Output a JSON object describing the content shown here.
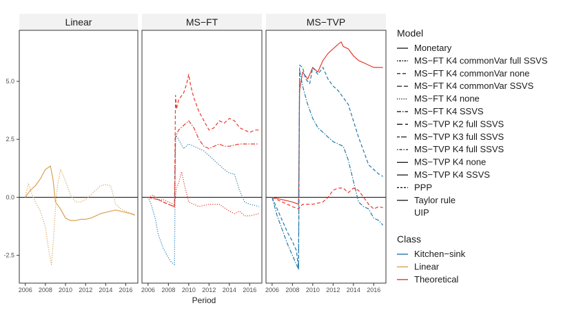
{
  "chart_data": {
    "type": "line",
    "xlabel": "Period",
    "ylabel": "",
    "xlim": [
      2005.4,
      2017.2
    ],
    "ylim": [
      -3.7,
      7.2
    ],
    "x_ticks": [
      "2006",
      "2008",
      "2010",
      "2012",
      "2014",
      "2016"
    ],
    "y_ticks": [
      "-2.5",
      "0.0",
      "2.5",
      "5.0"
    ],
    "grid": false,
    "hline": 0,
    "panels": [
      {
        "title": "Linear",
        "series": [
          {
            "class": "Linear",
            "dash": "solid",
            "x": [
              2006.0,
              2006.5,
              2007.0,
              2007.5,
              2008.0,
              2008.5,
              2008.75,
              2009.0,
              2009.5,
              2010.0,
              2010.5,
              2011.0,
              2011.5,
              2012.0,
              2012.5,
              2013.0,
              2013.5,
              2014.0,
              2014.5,
              2015.0,
              2015.5,
              2016.0,
              2016.5,
              2016.9
            ],
            "y": [
              0.0,
              0.3,
              0.5,
              0.8,
              1.2,
              1.35,
              0.8,
              -0.2,
              -0.5,
              -0.9,
              -1.0,
              -1.0,
              -0.95,
              -0.95,
              -0.9,
              -0.8,
              -0.7,
              -0.65,
              -0.6,
              -0.55,
              -0.6,
              -0.65,
              -0.7,
              -0.75
            ]
          },
          {
            "class": "Linear",
            "dash": "dotted",
            "x": [
              2006.0,
              2006.3,
              2006.6,
              2007.0,
              2007.5,
              2008.0,
              2008.3,
              2008.6,
              2008.8,
              2009.0,
              2009.2,
              2009.5,
              2010.0,
              2010.5,
              2011.0,
              2011.5,
              2012.0,
              2012.5,
              2013.0,
              2013.5,
              2014.0,
              2014.5,
              2015.0,
              2015.5,
              2016.0,
              2016.5,
              2016.9
            ],
            "y": [
              0.0,
              0.6,
              0.2,
              -0.2,
              -0.6,
              -1.3,
              -2.2,
              -2.9,
              -1.8,
              -0.5,
              0.5,
              1.2,
              0.7,
              0.1,
              -0.2,
              -0.2,
              -0.1,
              0.1,
              0.3,
              0.5,
              0.55,
              0.5,
              -0.3,
              -0.5,
              -0.6,
              -0.7,
              -0.8
            ]
          }
        ]
      },
      {
        "title": "MS−FT",
        "series": [
          {
            "class": "Theoretical",
            "dash": "dashed",
            "x": [
              2006.0,
              2007.0,
              2008.0,
              2008.6,
              2008.7,
              2008.8,
              2009.0,
              2009.5,
              2009.8,
              2010.0,
              2010.2,
              2010.5,
              2011.0,
              2011.5,
              2012.0,
              2012.5,
              2013.0,
              2013.5,
              2014.0,
              2014.5,
              2015.0,
              2015.5,
              2016.0,
              2016.5,
              2016.9
            ],
            "y": [
              0.0,
              -0.1,
              -0.3,
              -0.4,
              4.4,
              3.8,
              4.2,
              4.5,
              4.9,
              5.3,
              4.8,
              4.3,
              3.7,
              3.3,
              2.9,
              3.0,
              3.3,
              3.2,
              3.4,
              3.3,
              3.0,
              2.9,
              2.8,
              2.9,
              2.9
            ]
          },
          {
            "class": "Theoretical",
            "dash": "dashdot",
            "x": [
              2006.0,
              2007.0,
              2008.0,
              2008.6,
              2008.7,
              2009.0,
              2009.5,
              2010.0,
              2010.5,
              2011.0,
              2011.5,
              2012.0,
              2012.5,
              2013.0,
              2013.5,
              2014.0,
              2015.0,
              2016.0,
              2016.9
            ],
            "y": [
              0.0,
              -0.1,
              -0.3,
              -0.4,
              2.6,
              2.9,
              3.1,
              3.3,
              3.0,
              2.5,
              2.2,
              2.1,
              2.2,
              2.3,
              2.2,
              2.2,
              2.3,
              2.3,
              2.3
            ]
          },
          {
            "class": "Kitchen-sink",
            "dash": "dotted",
            "x": [
              2006.0,
              2006.3,
              2006.7,
              2007.0,
              2007.5,
              2008.0,
              2008.3,
              2008.6,
              2008.7,
              2009.0,
              2009.5,
              2010.0,
              2010.5,
              2011.0,
              2011.5,
              2012.0,
              2012.5,
              2013.0,
              2013.5,
              2014.0,
              2014.5,
              2015.0,
              2015.5,
              2016.0,
              2016.5,
              2016.9
            ],
            "y": [
              0.0,
              -0.3,
              -0.9,
              -1.6,
              -2.2,
              -2.6,
              -2.8,
              -2.9,
              2.7,
              2.5,
              2.1,
              2.3,
              2.2,
              2.1,
              2.0,
              1.8,
              1.6,
              1.4,
              1.2,
              1.05,
              1.0,
              0.3,
              -0.2,
              -0.3,
              -0.35,
              -0.4
            ]
          },
          {
            "class": "Theoretical",
            "dash": "dotted",
            "x": [
              2006.0,
              2006.5,
              2007.0,
              2007.5,
              2008.0,
              2008.6,
              2008.8,
              2009.0,
              2009.3,
              2009.6,
              2010.0,
              2011.0,
              2012.0,
              2013.0,
              2014.0,
              2014.5,
              2015.0,
              2015.5,
              2016.0,
              2016.5,
              2016.9
            ],
            "y": [
              0.0,
              0.1,
              -0.1,
              -0.1,
              -0.2,
              -0.3,
              0.4,
              0.6,
              1.1,
              0.5,
              -0.2,
              -0.4,
              -0.3,
              -0.3,
              -0.6,
              -0.7,
              -0.6,
              -0.8,
              -0.8,
              -0.75,
              -0.7
            ]
          }
        ]
      },
      {
        "title": "MS−TVP",
        "series": [
          {
            "class": "Theoretical",
            "dash": "solid",
            "x": [
              2006.0,
              2007.0,
              2008.0,
              2008.6,
              2008.7,
              2009.0,
              2009.5,
              2010.0,
              2010.5,
              2011.0,
              2011.5,
              2012.0,
              2012.5,
              2012.8,
              2013.0,
              2013.5,
              2014.0,
              2014.5,
              2015.0,
              2015.5,
              2016.0,
              2016.5,
              2016.9
            ],
            "y": [
              0.0,
              -0.1,
              -0.2,
              -0.3,
              4.6,
              5.4,
              5.1,
              5.6,
              5.4,
              5.9,
              6.2,
              6.4,
              6.6,
              6.7,
              6.5,
              6.4,
              6.1,
              5.9,
              5.8,
              5.7,
              5.6,
              5.6,
              5.6
            ]
          },
          {
            "class": "Kitchen-sink",
            "dash": "dashed",
            "x": [
              2006.0,
              2006.5,
              2007.0,
              2007.5,
              2008.0,
              2008.4,
              2008.6,
              2008.7,
              2009.0,
              2009.3,
              2009.7,
              2010.0,
              2010.5,
              2011.0,
              2011.5,
              2012.0,
              2012.5,
              2013.0,
              2013.5,
              2014.0,
              2014.5,
              2015.0,
              2015.5,
              2016.0,
              2016.5,
              2016.9
            ],
            "y": [
              0.0,
              -0.5,
              -1.0,
              -1.5,
              -1.9,
              -2.3,
              -3.1,
              5.7,
              5.6,
              5.1,
              4.9,
              5.6,
              5.3,
              5.6,
              5.1,
              4.8,
              4.6,
              4.3,
              4.0,
              3.3,
              2.6,
              2.0,
              1.4,
              1.2,
              1.0,
              0.9
            ]
          },
          {
            "class": "Kitchen-sink",
            "dash": "dashdot",
            "x": [
              2006.0,
              2006.5,
              2007.0,
              2007.5,
              2008.0,
              2008.4,
              2008.6,
              2008.7,
              2009.0,
              2009.5,
              2010.0,
              2010.5,
              2011.0,
              2011.5,
              2012.0,
              2012.5,
              2013.0,
              2013.5,
              2014.0,
              2014.5,
              2015.0,
              2015.5,
              2016.0,
              2016.5,
              2016.9
            ],
            "y": [
              0.0,
              -0.8,
              -1.4,
              -2.0,
              -2.5,
              -2.9,
              -3.1,
              5.5,
              4.8,
              4.0,
              3.4,
              3.0,
              2.8,
              2.6,
              2.4,
              2.3,
              2.2,
              1.6,
              0.7,
              -0.2,
              -0.4,
              -0.5,
              -0.9,
              -1.0,
              -1.2
            ]
          },
          {
            "class": "Theoretical",
            "dash": "dashed",
            "x": [
              2006.0,
              2007.0,
              2008.0,
              2008.6,
              2009.0,
              2010.0,
              2011.0,
              2011.5,
              2012.0,
              2012.5,
              2013.0,
              2013.5,
              2014.0,
              2014.5,
              2015.0,
              2015.5,
              2016.0,
              2016.5,
              2016.9
            ],
            "y": [
              0.0,
              -0.2,
              -0.4,
              -0.5,
              -0.3,
              -0.3,
              -0.2,
              0.0,
              0.3,
              0.4,
              0.4,
              0.2,
              0.4,
              0.3,
              0.0,
              -0.3,
              -0.5,
              -0.4,
              -0.45
            ]
          }
        ]
      }
    ],
    "legend": {
      "position": "right",
      "model_title": "Model",
      "models": [
        {
          "label": "Monetary",
          "dash": "solid"
        },
        {
          "label": "MS−FT K4 commonVar full SSVS",
          "dash": "dotdash-fine"
        },
        {
          "label": "MS−FT K4 commonVar none",
          "dash": "dashed"
        },
        {
          "label": "MS−FT K4 commonVar SSVS",
          "dash": "longdash"
        },
        {
          "label": "MS−FT K4 none",
          "dash": "dotted"
        },
        {
          "label": "MS−FT K4 SSVS",
          "dash": "dashdot"
        },
        {
          "label": "MS−TVP K2 full SSVS",
          "dash": "longdash2"
        },
        {
          "label": "MS−TVP K3 full SSVS",
          "dash": "twodash"
        },
        {
          "label": "MS−TVP K4 full SSVS",
          "dash": "dotdash"
        },
        {
          "label": "MS−TVP K4 none",
          "dash": "solid"
        },
        {
          "label": "MS−TVP K4 SSVS",
          "dash": "solid"
        },
        {
          "label": "PPP",
          "dash": "shortdash"
        },
        {
          "label": "Taylor rule",
          "dash": "solid"
        },
        {
          "label": "UIP",
          "dash": "blank"
        }
      ],
      "class_title": "Class",
      "classes": [
        {
          "label": "Kitchen−sink",
          "color": "#1f78a8"
        },
        {
          "label": "Linear",
          "color": "#d9a050"
        },
        {
          "label": "Theoretical",
          "color": "#e8382c"
        }
      ]
    }
  }
}
